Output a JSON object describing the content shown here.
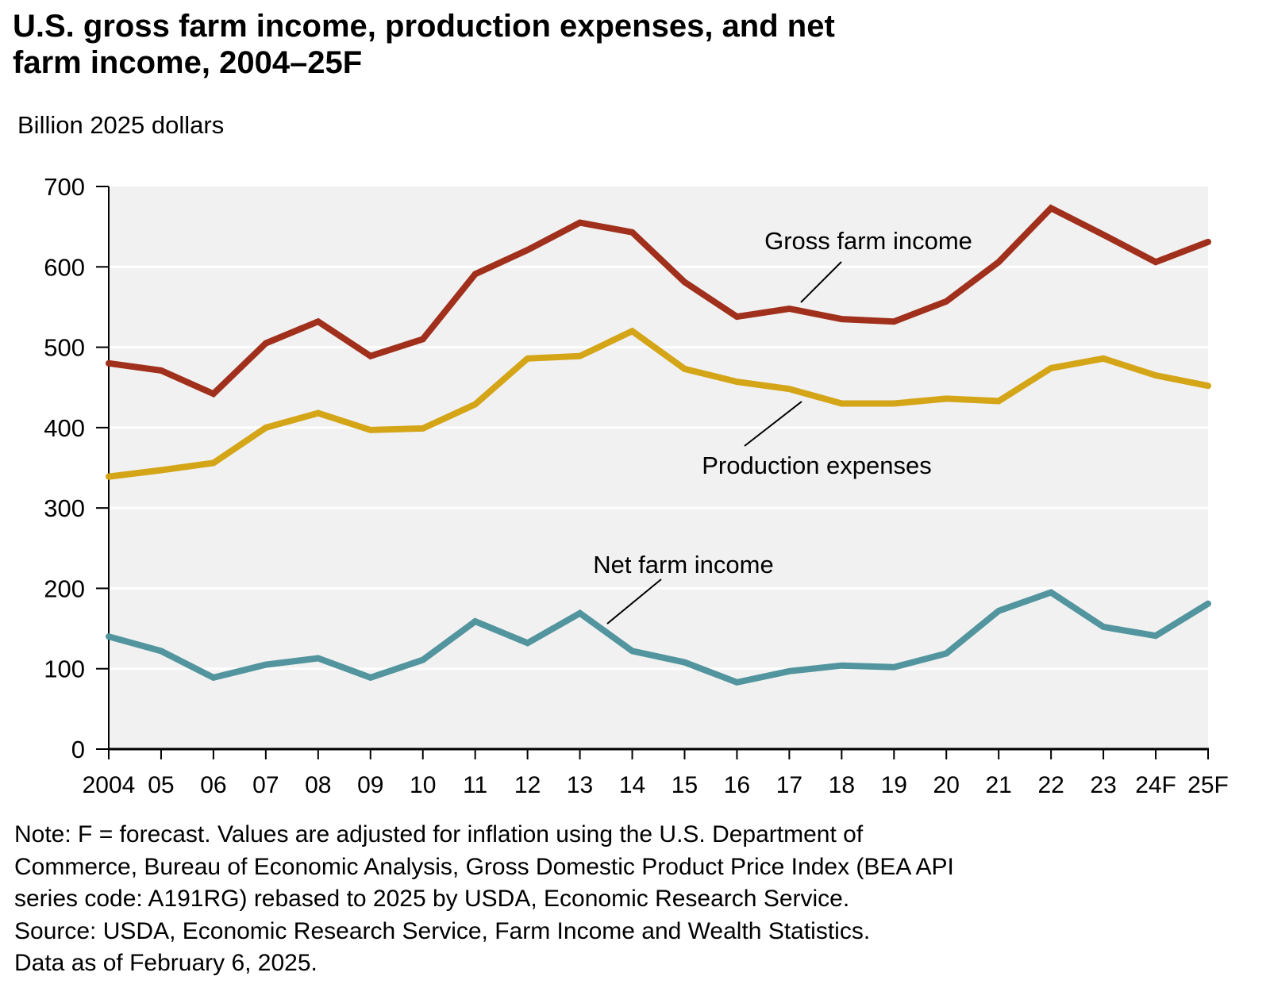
{
  "chart_data": {
    "type": "line",
    "title": "U.S. gross farm income, production expenses, and net farm income, 2004–25F",
    "ylabel": "Billion 2025 dollars",
    "xlabel": "",
    "ylim": [
      0,
      700
    ],
    "yticks": [
      0,
      100,
      200,
      300,
      400,
      500,
      600,
      700
    ],
    "grid": true,
    "categories": [
      "2004",
      "05",
      "06",
      "07",
      "08",
      "09",
      "10",
      "11",
      "12",
      "13",
      "14",
      "15",
      "16",
      "17",
      "18",
      "19",
      "20",
      "21",
      "22",
      "23",
      "24F",
      "25F"
    ],
    "series": [
      {
        "name": "Gross farm income",
        "color": "#A0301C",
        "values": [
          480,
          471,
          442,
          505,
          532,
          489,
          510,
          591,
          621,
          655,
          643,
          581,
          538,
          548,
          535,
          532,
          557,
          606,
          673,
          640,
          606,
          631
        ]
      },
      {
        "name": "Production expenses",
        "color": "#D4A517",
        "values": [
          339,
          347,
          356,
          400,
          418,
          397,
          399,
          429,
          486,
          489,
          520,
          473,
          457,
          448,
          430,
          430,
          436,
          433,
          474,
          486,
          465,
          452
        ]
      },
      {
        "name": "Net farm income",
        "color": "#52959E",
        "values": [
          140,
          122,
          89,
          105,
          113,
          89,
          111,
          159,
          132,
          169,
          122,
          108,
          83,
          97,
          104,
          102,
          119,
          172,
          195,
          152,
          141,
          181
        ]
      }
    ],
    "annotations": [
      {
        "text": "Gross farm income",
        "series": "Gross farm income"
      },
      {
        "text": "Production expenses",
        "series": "Production expenses"
      },
      {
        "text": "Net farm income",
        "series": "Net farm income"
      }
    ],
    "legend": "inline-labels"
  },
  "title_line1": "U.S. gross farm income, production expenses, and net",
  "title_line2": "farm income, 2004–25F",
  "unit_label": "Billion 2025 dollars",
  "notes": [
    "Note: F = forecast. Values are adjusted for inflation using the U.S. Department of",
    "Commerce, Bureau of Economic Analysis, Gross Domestic Product Price Index (BEA API",
    "series code: A191RG) rebased to 2025 by USDA, Economic Research Service.",
    "Source: USDA, Economic Research Service, Farm Income and Wealth Statistics.",
    "Data as of February 6, 2025."
  ]
}
